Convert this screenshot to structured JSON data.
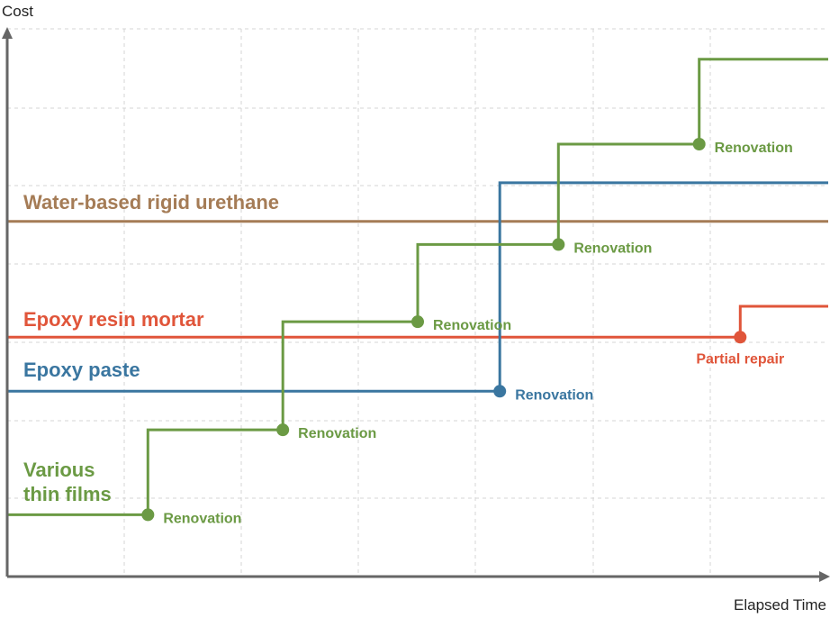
{
  "chart_data": {
    "type": "line",
    "title": "",
    "xlabel": "Elapsed Time",
    "ylabel": "Cost",
    "xlim": [
      0,
      14
    ],
    "ylim": [
      0,
      7
    ],
    "grid": true,
    "series": [
      {
        "name": "Water-based rigid urethane",
        "color": "#a57c56",
        "label_lines": [
          "Water-based rigid urethane"
        ],
        "steps": [
          [
            0,
            4.6
          ],
          [
            14,
            4.6
          ]
        ],
        "events": []
      },
      {
        "name": "Epoxy resin mortar",
        "color": "#e0553a",
        "label_lines": [
          "Epoxy resin mortar"
        ],
        "steps": [
          [
            0,
            3.1
          ],
          [
            12.5,
            3.1
          ],
          [
            12.5,
            3.5
          ],
          [
            14,
            3.5
          ]
        ],
        "events": [
          {
            "x": 12.5,
            "y": 3.1,
            "label": "Partial repair",
            "label_pos": "below"
          }
        ]
      },
      {
        "name": "Epoxy paste",
        "color": "#3a76a0",
        "label_lines": [
          "Epoxy paste"
        ],
        "steps": [
          [
            0,
            2.4
          ],
          [
            8.4,
            2.4
          ],
          [
            8.4,
            5.1
          ],
          [
            14,
            5.1
          ]
        ],
        "events": [
          {
            "x": 8.4,
            "y": 2.4,
            "label": "Renovation",
            "label_pos": "right"
          }
        ]
      },
      {
        "name": "Various thin films",
        "color": "#6b9a44",
        "label_lines": [
          "Various",
          "thin films"
        ],
        "steps": [
          [
            0,
            0.8
          ],
          [
            2.4,
            0.8
          ],
          [
            2.4,
            1.9
          ],
          [
            4.7,
            1.9
          ],
          [
            4.7,
            3.3
          ],
          [
            7.0,
            3.3
          ],
          [
            7.0,
            4.3
          ],
          [
            9.4,
            4.3
          ],
          [
            9.4,
            5.6
          ],
          [
            11.8,
            5.6
          ],
          [
            11.8,
            6.7
          ],
          [
            14,
            6.7
          ]
        ],
        "events": [
          {
            "x": 2.4,
            "y": 0.8,
            "label": "Renovation",
            "label_pos": "right"
          },
          {
            "x": 4.7,
            "y": 1.9,
            "label": "Renovation",
            "label_pos": "right"
          },
          {
            "x": 7.0,
            "y": 3.3,
            "label": "Renovation",
            "label_pos": "right"
          },
          {
            "x": 9.4,
            "y": 4.3,
            "label": "Renovation",
            "label_pos": "right"
          },
          {
            "x": 11.8,
            "y": 5.6,
            "label": "Renovation",
            "label_pos": "right"
          }
        ]
      }
    ]
  }
}
